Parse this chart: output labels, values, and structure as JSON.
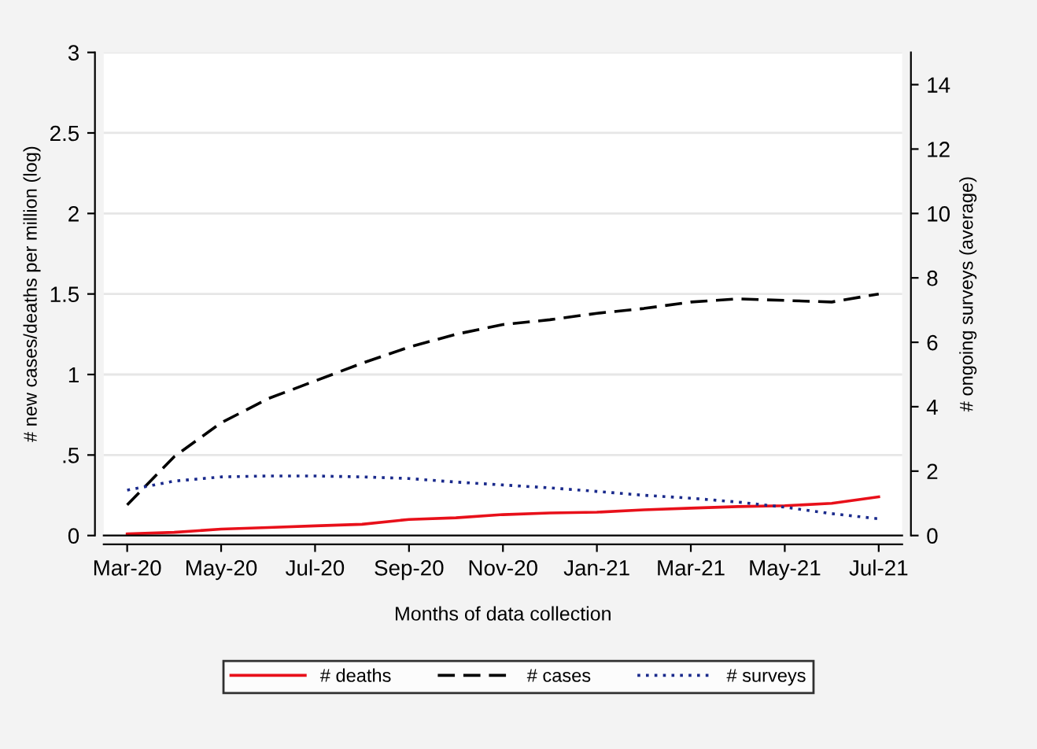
{
  "chart_data": {
    "type": "line",
    "xlabel": "Months of data collection",
    "ylabel": "# new cases/deaths per million (log)",
    "y2label": "# ongoing surveys (average)",
    "categories": [
      "Mar-20",
      null,
      "May-20",
      null,
      "Jul-20",
      null,
      "Sep-20",
      null,
      "Nov-20",
      null,
      "Jan-21",
      null,
      "Mar-21",
      null,
      "May-21",
      null,
      "Jul-21"
    ],
    "series": [
      {
        "name": "# deaths",
        "color": "#e8101a",
        "line_style": "solid",
        "values": [
          0.01,
          0.02,
          0.04,
          0.05,
          0.06,
          0.07,
          0.1,
          0.11,
          0.13,
          0.14,
          0.145,
          0.16,
          0.17,
          0.18,
          0.185,
          0.2,
          0.24
        ]
      },
      {
        "name": "# cases",
        "color": "#000000",
        "line_style": "dashed",
        "values": [
          0.19,
          0.49,
          0.7,
          0.85,
          0.96,
          1.07,
          1.17,
          1.25,
          1.31,
          1.34,
          1.38,
          1.41,
          1.45,
          1.47,
          1.46,
          1.45,
          1.5
        ]
      },
      {
        "name": "# surveys",
        "color": "#1a2a8c",
        "line_style": "dotted",
        "axis": "y2",
        "values": [
          1.41,
          1.69,
          1.82,
          1.85,
          1.85,
          1.82,
          1.77,
          1.66,
          1.57,
          1.48,
          1.37,
          1.25,
          1.16,
          1.04,
          0.88,
          0.68,
          0.52
        ]
      }
    ],
    "ylim": [
      0,
      3
    ],
    "yticks": [
      0,
      {
        "value": 0.5,
        "label": ".5"
      },
      1,
      1.5,
      2,
      2.5,
      3
    ],
    "y2lim": [
      0,
      15
    ],
    "y2ticks": [
      0,
      2,
      4,
      6,
      8,
      10,
      12,
      14
    ],
    "grid": "y",
    "legend": "bottom"
  }
}
